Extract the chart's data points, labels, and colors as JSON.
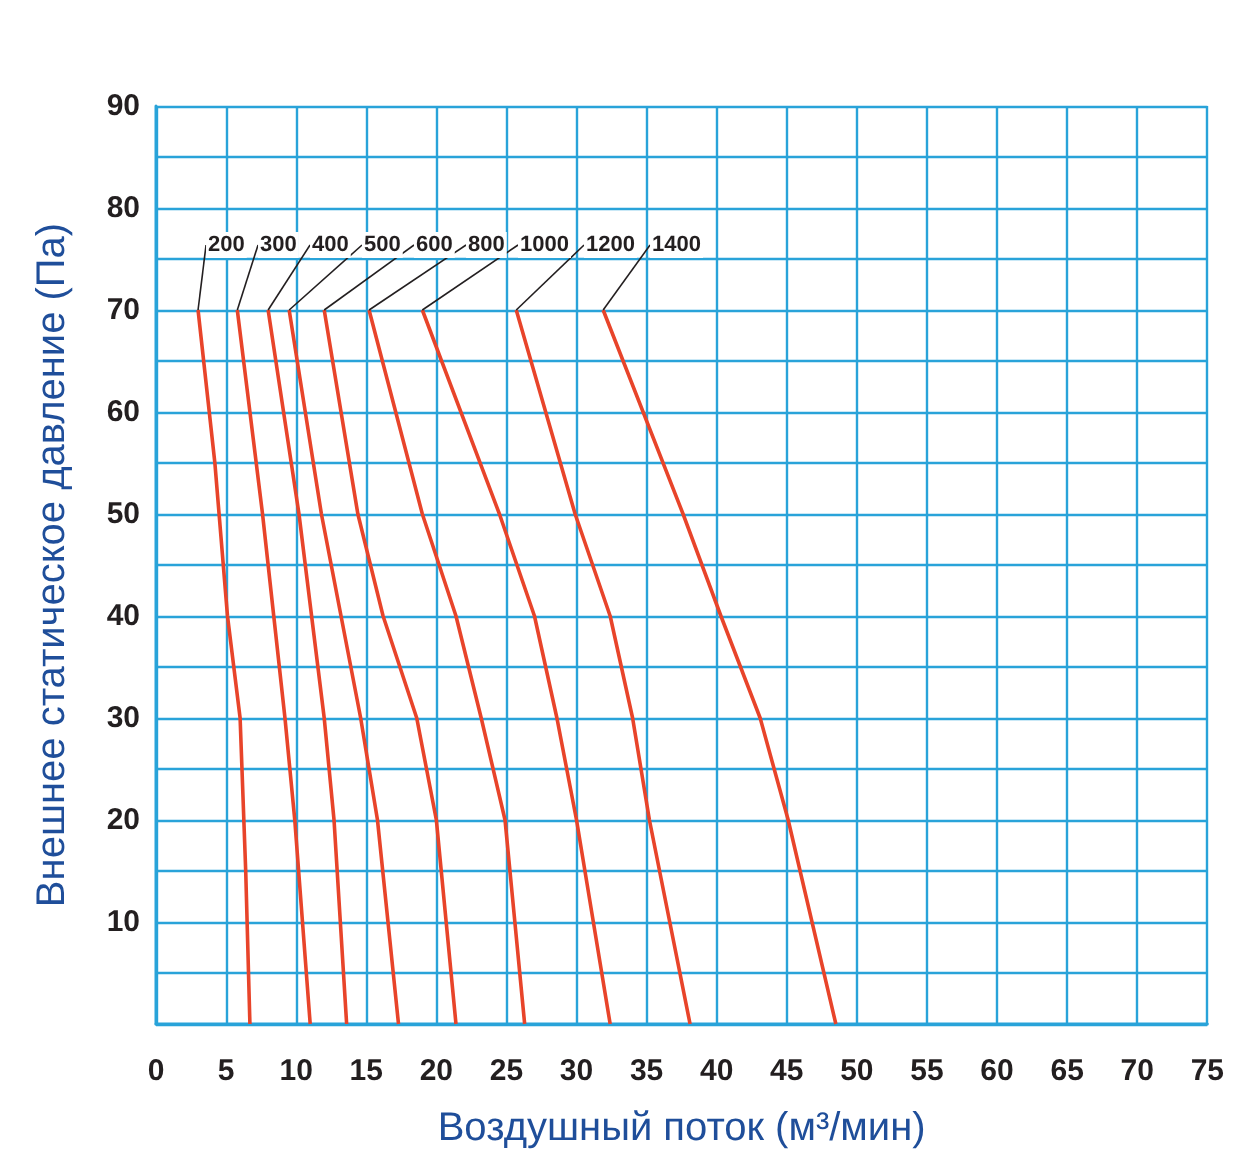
{
  "chart_data": {
    "type": "line",
    "xlabel": "Воздушный поток (м³/мин)",
    "ylabel": "Внешнее статическое давление (Па)",
    "xlim": [
      0,
      75
    ],
    "xticks": [
      0,
      5,
      10,
      15,
      20,
      25,
      30,
      35,
      40,
      45,
      50,
      55,
      60,
      65,
      70,
      75
    ],
    "ylim": [
      0,
      90
    ],
    "yticks": [
      {
        "value": 0,
        "label": null
      },
      {
        "value": 5,
        "label": null
      },
      10,
      {
        "value": 15,
        "label": null
      },
      20,
      {
        "value": 25,
        "label": null
      },
      30,
      {
        "value": 35,
        "label": null
      },
      40,
      {
        "value": 45,
        "label": null
      },
      50,
      {
        "value": 55,
        "label": null
      },
      60,
      {
        "value": 65,
        "label": null
      },
      70,
      {
        "value": 75,
        "label": null
      },
      80,
      {
        "value": 85,
        "label": null
      },
      90
    ],
    "grid": true,
    "legend": false,
    "marker": "none",
    "line_style": "solid",
    "series": [
      {
        "name": "200",
        "color": "#e8442a",
        "x": [
          3.0,
          4.2,
          5.1,
          6.0,
          6.4,
          6.7
        ],
        "values": [
          70,
          55,
          40,
          30,
          15,
          0
        ]
      },
      {
        "name": "300",
        "color": "#e8442a",
        "x": [
          5.8,
          7.6,
          8.4,
          9.2,
          9.9,
          11.0
        ],
        "values": [
          70,
          50,
          40,
          30,
          20,
          0
        ]
      },
      {
        "name": "400",
        "color": "#e8442a",
        "x": [
          8.0,
          10.2,
          12.0,
          12.7,
          13.6
        ],
        "values": [
          70,
          50,
          30,
          20,
          0
        ]
      },
      {
        "name": "500",
        "color": "#e8442a",
        "x": [
          9.5,
          11.8,
          14.6,
          15.8,
          17.3
        ],
        "values": [
          70,
          50,
          30,
          20,
          0
        ]
      },
      {
        "name": "600",
        "color": "#e8442a",
        "x": [
          12.0,
          14.4,
          16.2,
          18.6,
          20.0,
          21.4
        ],
        "values": [
          70,
          50,
          40,
          30,
          20,
          0
        ]
      },
      {
        "name": "800",
        "color": "#e8442a",
        "x": [
          15.2,
          19.0,
          21.4,
          23.2,
          24.9,
          26.3
        ],
        "values": [
          70,
          50,
          40,
          30,
          20,
          0
        ]
      },
      {
        "name": "1000",
        "color": "#e8442a",
        "x": [
          19.0,
          24.5,
          27.0,
          28.6,
          30.0,
          32.4
        ],
        "values": [
          70,
          50,
          40,
          30,
          20,
          0
        ]
      },
      {
        "name": "1200",
        "color": "#e8442a",
        "x": [
          25.7,
          29.9,
          32.4,
          34.0,
          35.2,
          38.1
        ],
        "values": [
          70,
          50,
          40,
          30,
          20,
          0
        ]
      },
      {
        "name": "1400",
        "color": "#e8442a",
        "x": [
          31.9,
          37.6,
          40.3,
          43.1,
          45.1,
          48.5
        ],
        "values": [
          70,
          50,
          40,
          30,
          20,
          0
        ]
      }
    ]
  }
}
